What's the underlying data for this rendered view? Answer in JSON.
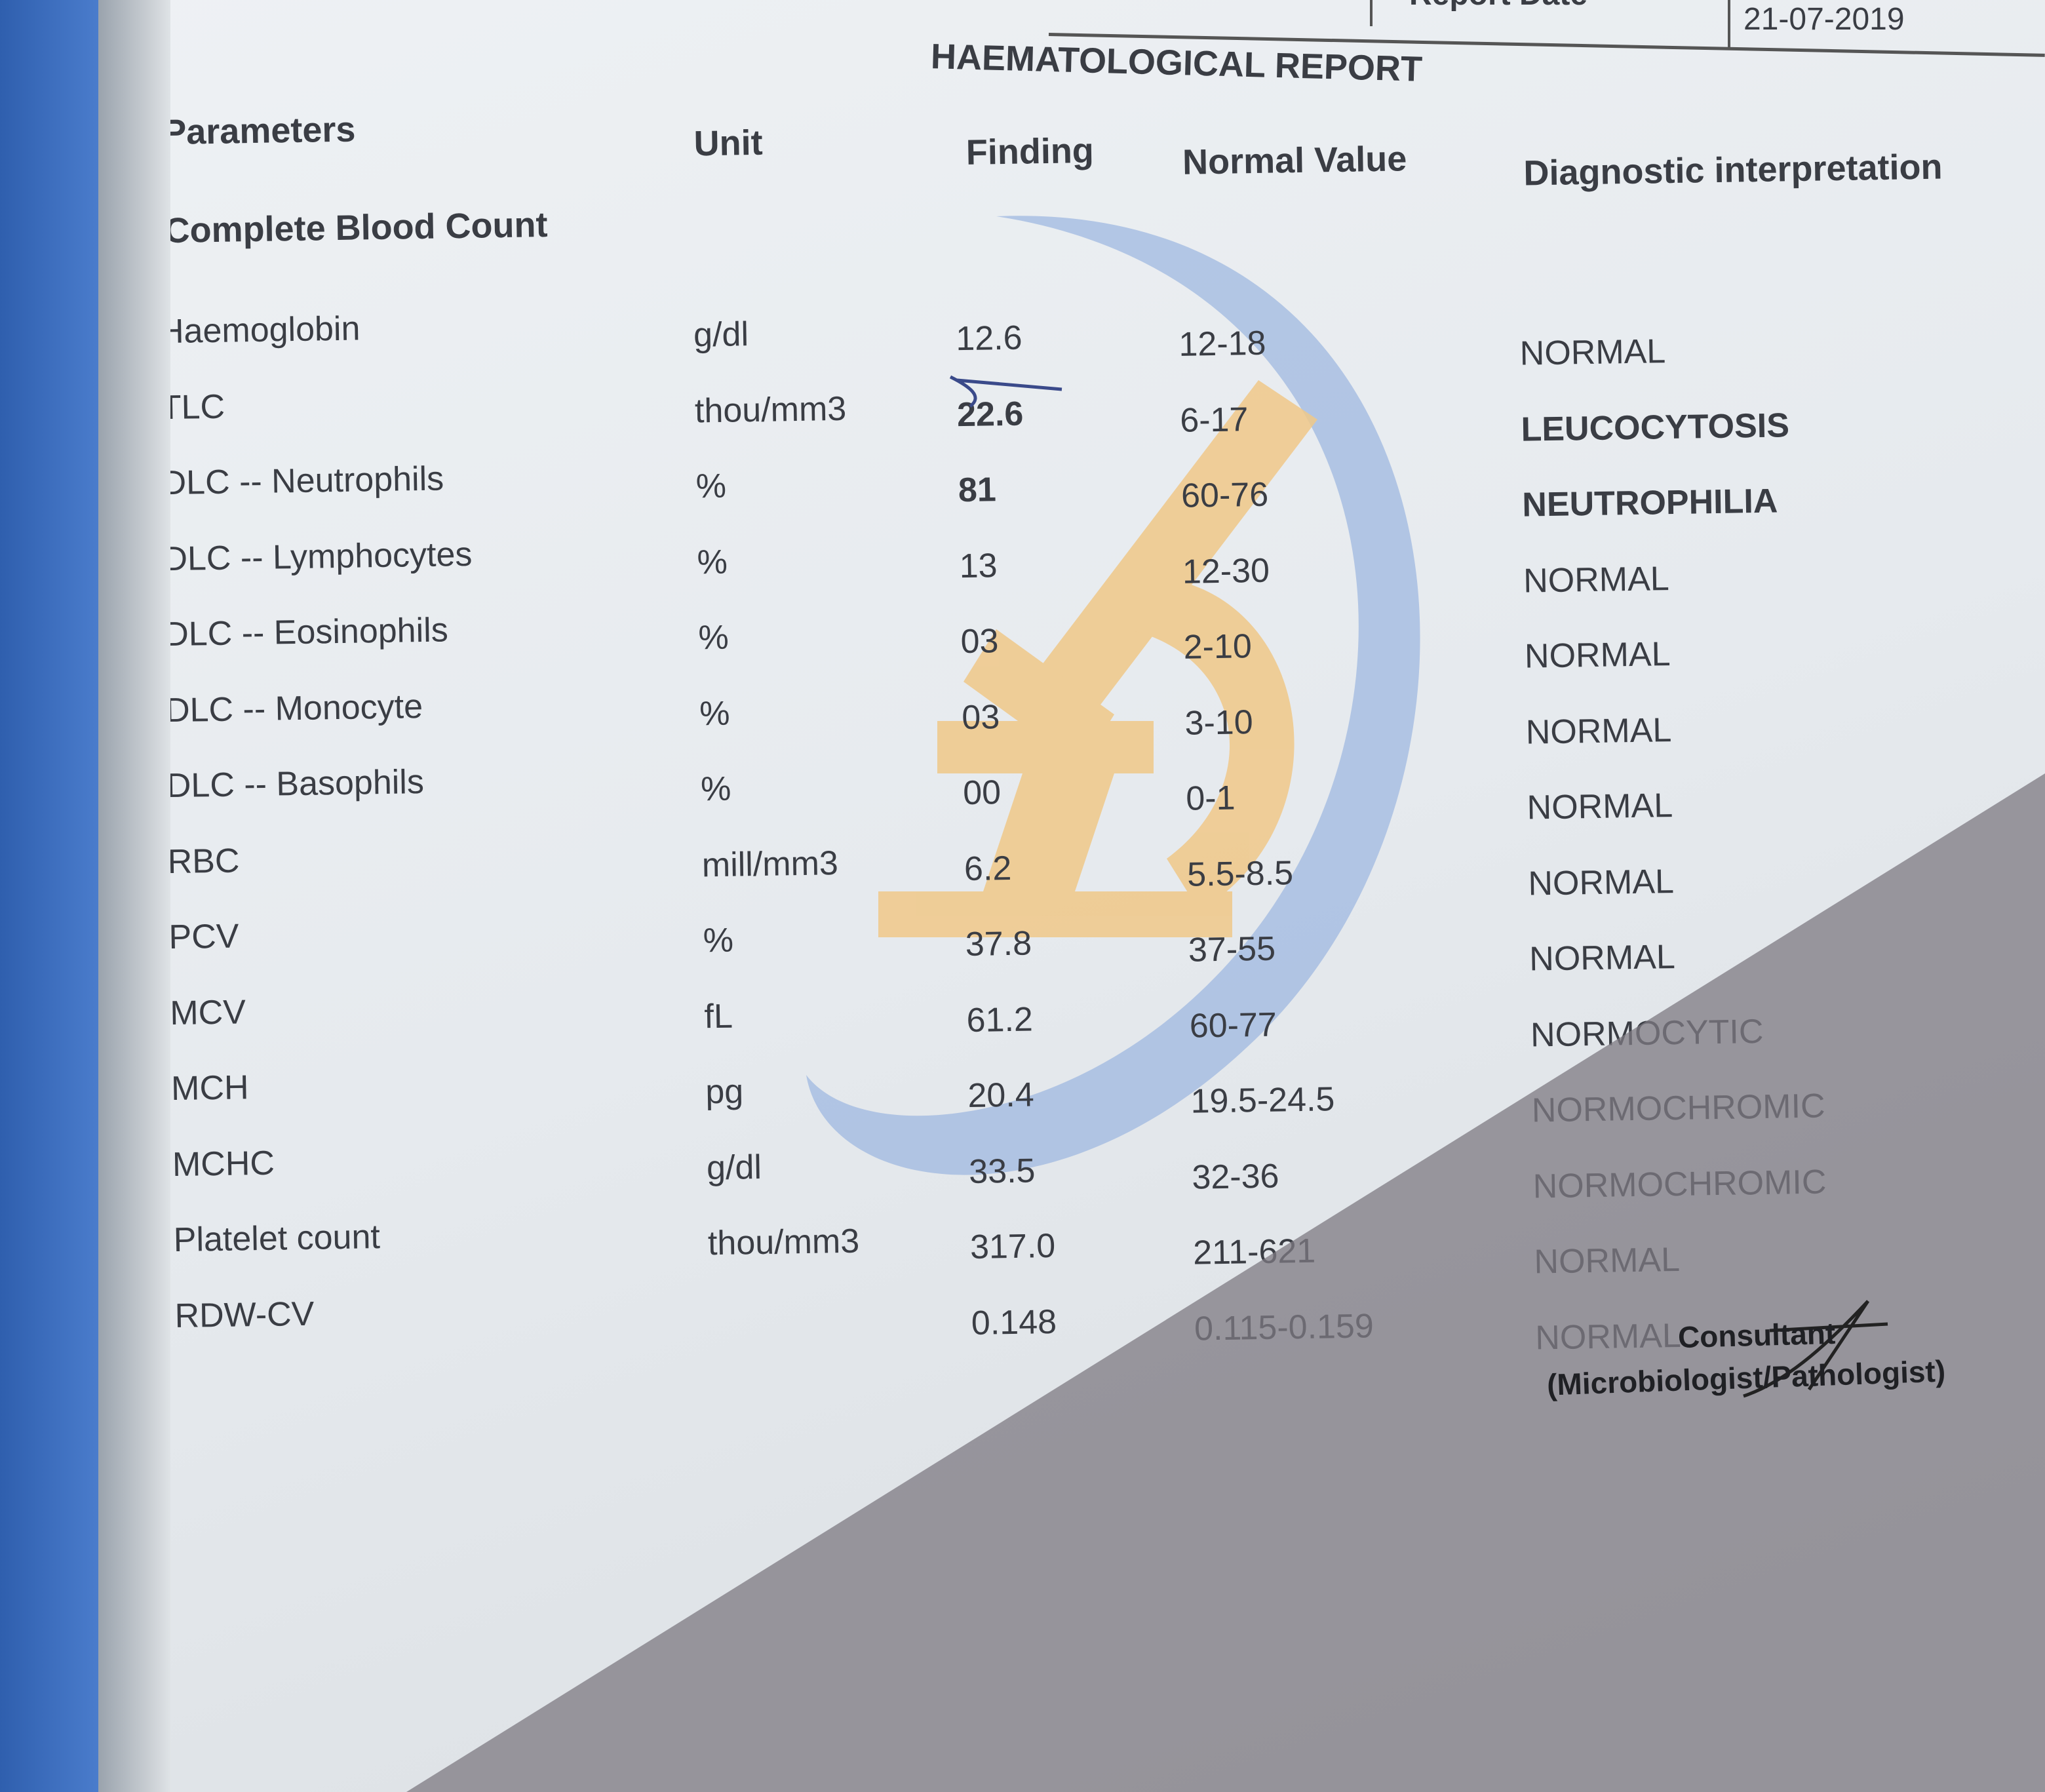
{
  "header": {
    "report_date_label": "Report Date",
    "report_date": "21-07-2019"
  },
  "title": "HAEMATOLOGICAL REPORT",
  "columns": {
    "parameters": "Parameters",
    "unit": "Unit",
    "finding": "Finding",
    "normal_value": "Normal Value",
    "interpretation": "Diagnostic interpretation"
  },
  "section": "Complete Blood Count",
  "rows": [
    {
      "parameter": "Haemoglobin",
      "unit": "g/dl",
      "finding": "12.6",
      "normal": "12-18",
      "interpretation": "NORMAL"
    },
    {
      "parameter": "TLC",
      "unit": "thou/mm3",
      "finding": "22.6",
      "normal": "6-17",
      "interpretation": "LEUCOCYTOSIS"
    },
    {
      "parameter": "DLC -- Neutrophils",
      "unit": "%",
      "finding": "81",
      "normal": "60-76",
      "interpretation": "NEUTROPHILIA"
    },
    {
      "parameter": "DLC -- Lymphocytes",
      "unit": "%",
      "finding": "13",
      "normal": "12-30",
      "interpretation": "NORMAL"
    },
    {
      "parameter": "DLC -- Eosinophils",
      "unit": "%",
      "finding": "03",
      "normal": "2-10",
      "interpretation": "NORMAL"
    },
    {
      "parameter": "DLC -- Monocyte",
      "unit": "%",
      "finding": "03",
      "normal": "3-10",
      "interpretation": "NORMAL"
    },
    {
      "parameter": "DLC -- Basophils",
      "unit": "%",
      "finding": "00",
      "normal": "0-1",
      "interpretation": "NORMAL"
    },
    {
      "parameter": "RBC",
      "unit": "mill/mm3",
      "finding": "6.2",
      "normal": "5.5-8.5",
      "interpretation": "NORMAL"
    },
    {
      "parameter": "PCV",
      "unit": "%",
      "finding": "37.8",
      "normal": "37-55",
      "interpretation": "NORMAL"
    },
    {
      "parameter": "MCV",
      "unit": "fL",
      "finding": "61.2",
      "normal": "60-77",
      "interpretation": "NORMOCYTIC"
    },
    {
      "parameter": "MCH",
      "unit": "pg",
      "finding": "20.4",
      "normal": "19.5-24.5",
      "interpretation": "NORMOCHROMIC"
    },
    {
      "parameter": "MCHC",
      "unit": "g/dl",
      "finding": "33.5",
      "normal": "32-36",
      "interpretation": "NORMOCHROMIC"
    },
    {
      "parameter": "Platelet count",
      "unit": "thou/mm3",
      "finding": "317.0",
      "normal": "211-621",
      "interpretation": "NORMAL"
    },
    {
      "parameter": "RDW-CV",
      "unit": "",
      "finding": "0.148",
      "normal": "0.115-0.159",
      "interpretation": "NORMAL"
    }
  ],
  "signature": {
    "role": "Consultant",
    "title": "(Microbiologist/Pathologist)"
  },
  "colors": {
    "watermark_arc": "#9fb8e0",
    "watermark_microscope": "#f0c888",
    "binder_edge": "#2f5fae"
  }
}
